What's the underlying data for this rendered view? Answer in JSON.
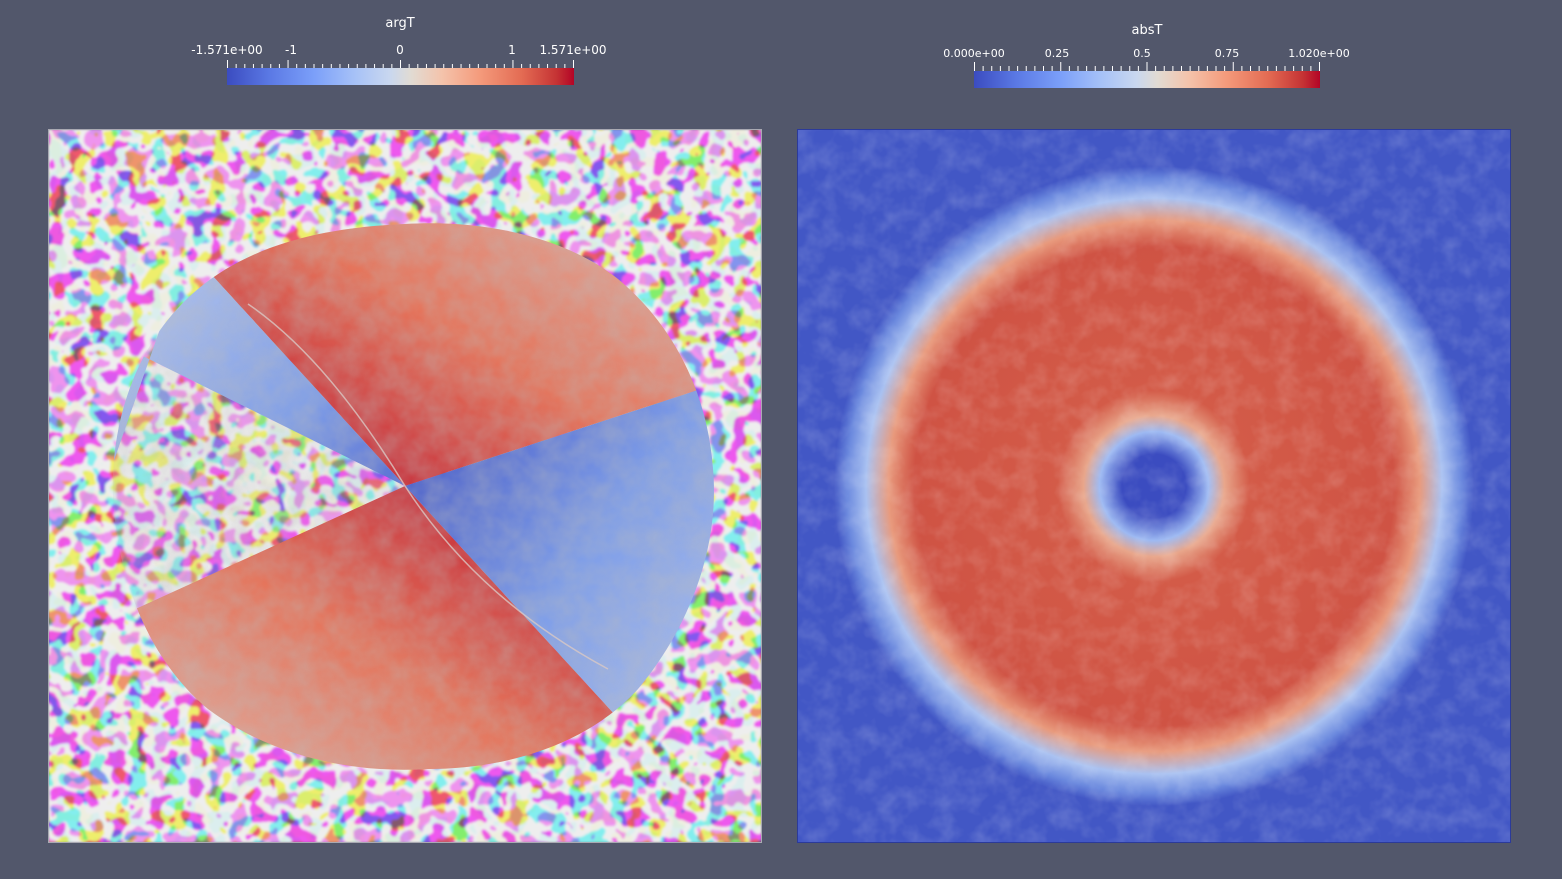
{
  "colorbars": {
    "left": {
      "title": "argT",
      "labels": [
        "-1.571e+00",
        "-1",
        "0",
        "1",
        "1.571e+00"
      ],
      "range": [
        -1.571,
        1.571
      ]
    },
    "right": {
      "title": "absT",
      "labels": [
        "0.000e+00",
        "0.25",
        "0.5",
        "0.75",
        "1.020e+00"
      ],
      "range": [
        0.0,
        1.02
      ]
    }
  },
  "colormap": {
    "name": "Cool to Warm",
    "low": "#3b4cc0",
    "mid": "#dddcdc",
    "high": "#b40426"
  },
  "background": "#52576b"
}
